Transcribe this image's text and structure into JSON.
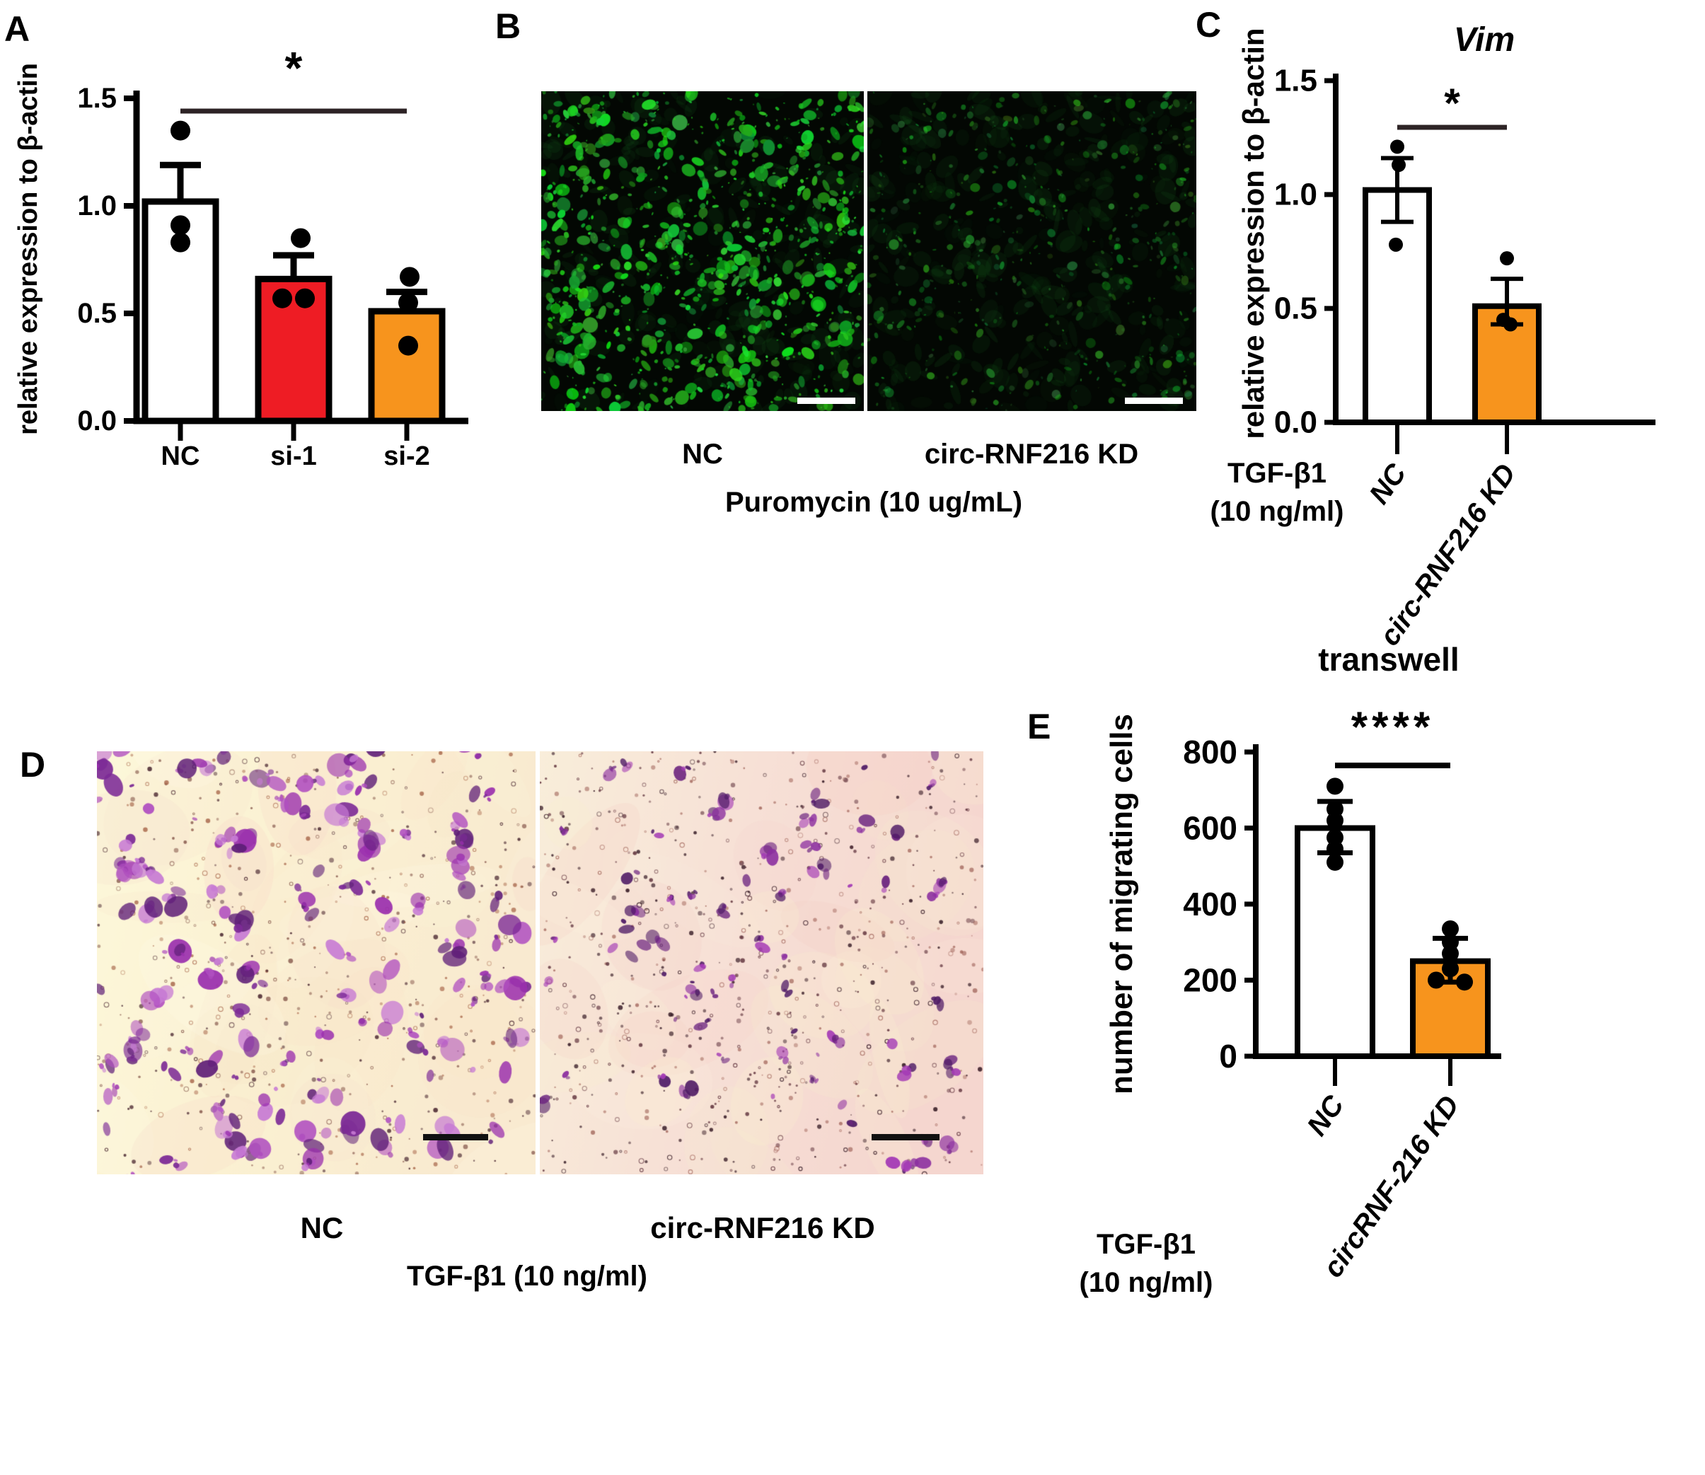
{
  "colors": {
    "bar_white": "#ffffff",
    "bar_red": "#ee1c24",
    "bar_orange": "#f7941d",
    "axis_black": "#000000",
    "sig_line": "#2d2325",
    "fluor_green": "#22c53a",
    "transwell_purple": "#8c2fa0"
  },
  "panels": {
    "A": {
      "letter": "A"
    },
    "B": {
      "letter": "B",
      "label_left": "NC",
      "label_right": "circ-RNF216 KD",
      "caption": "Puromycin (10 ug/mL)"
    },
    "C": {
      "letter": "C",
      "side_label_line1": "TGF-β1",
      "side_label_line2": "(10 ng/ml)"
    },
    "D": {
      "letter": "D",
      "label_left": "NC",
      "label_right": "circ-RNF216 KD",
      "caption": "TGF-β1 (10 ng/ml)"
    },
    "E": {
      "letter": "E",
      "side_label_line1": "TGF-β1",
      "side_label_line2": "(10 ng/ml)"
    }
  },
  "chart_data": [
    {
      "id": "A",
      "type": "bar",
      "title": "",
      "xlabel": "",
      "ylabel": "relative expression to β-actin",
      "ylim": [
        0,
        1.5
      ],
      "yticks": [
        "0.0",
        "0.5",
        "1.0",
        "1.5"
      ],
      "categories": [
        "NC",
        "si-1",
        "si-2"
      ],
      "values": [
        1.02,
        0.66,
        0.51
      ],
      "bar_colors": [
        "#ffffff",
        "#ee1c24",
        "#f7941d"
      ],
      "error_high": [
        1.19,
        0.77,
        0.6
      ],
      "error_low": [
        null,
        null,
        null
      ],
      "points": [
        [
          1.35,
          0.91,
          0.83
        ],
        [
          0.85,
          0.57,
          0.57
        ],
        [
          0.67,
          0.55,
          0.35
        ]
      ],
      "point_dx": [
        [
          0,
          0,
          0
        ],
        [
          10,
          -16,
          16
        ],
        [
          4,
          2,
          2
        ]
      ],
      "sig": {
        "from": 0,
        "to": 2,
        "label": "*"
      },
      "x_tick_rotation": 0,
      "grid": false,
      "legend": "none"
    },
    {
      "id": "C",
      "type": "bar",
      "title": "Vim",
      "xlabel": "",
      "ylabel": "relative expression to β-actin",
      "ylim": [
        0,
        1.5
      ],
      "yticks": [
        "0.0",
        "0.5",
        "1.0",
        "1.5"
      ],
      "categories": [
        "NC",
        "circ-RNF216 KD"
      ],
      "values": [
        1.02,
        0.51
      ],
      "bar_colors": [
        "#ffffff",
        "#f7941d"
      ],
      "error_high": [
        1.16,
        0.63
      ],
      "error_low": [
        0.88,
        0.43
      ],
      "points": [
        [
          1.21,
          1.13,
          0.78
        ],
        [
          0.72,
          0.45,
          0.43
        ]
      ],
      "point_dx": [
        [
          0,
          2,
          -2
        ],
        [
          0,
          -5,
          5
        ]
      ],
      "sig": {
        "from": 0,
        "to": 1,
        "label": "*"
      },
      "x_tick_rotation": -55,
      "x_side_label": [
        "TGF-β1",
        "(10 ng/ml)"
      ],
      "grid": false,
      "legend": "none"
    },
    {
      "id": "E",
      "type": "bar",
      "title": "transwell",
      "xlabel": "",
      "ylabel": "number of migrating cells",
      "ylim": [
        0,
        800
      ],
      "yticks": [
        "0",
        "200",
        "400",
        "600",
        "800"
      ],
      "categories": [
        "NC",
        "circRNF-216 KD"
      ],
      "values": [
        600,
        250
      ],
      "bar_colors": [
        "#ffffff",
        "#f7941d"
      ],
      "error_high": [
        670,
        310
      ],
      "error_low": [
        535,
        195
      ],
      "points": [
        [
          710,
          650,
          620,
          575,
          545,
          510
        ],
        [
          335,
          300,
          270,
          230,
          200,
          195
        ]
      ],
      "point_dx": [
        [
          0,
          0,
          0,
          0,
          0,
          0
        ],
        [
          0,
          0,
          0,
          0,
          -20,
          20
        ]
      ],
      "sig": {
        "from": 0,
        "to": 1,
        "label": "****"
      },
      "x_tick_rotation": -55,
      "x_side_label": [
        "TGF-β1",
        "(10 ng/ml)"
      ],
      "grid": false,
      "legend": "none"
    }
  ]
}
